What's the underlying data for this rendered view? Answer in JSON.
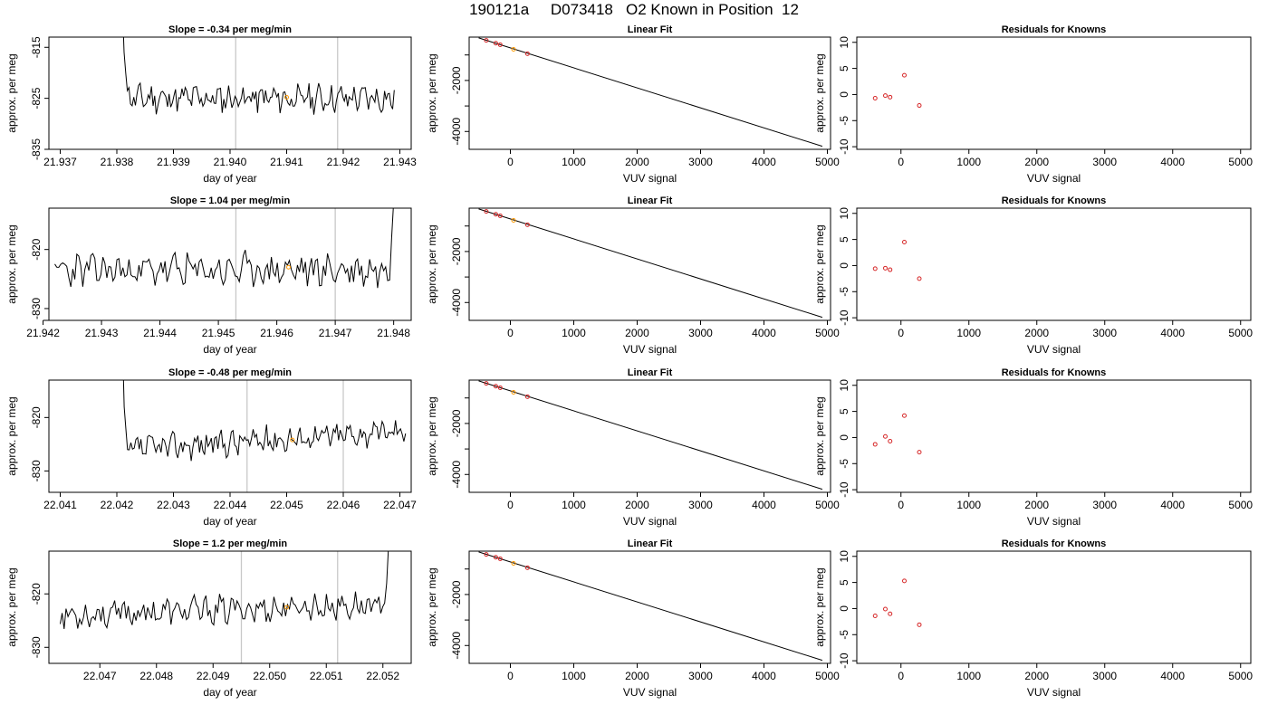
{
  "page": {
    "title": "190121a     D073418   O2 Known in Position  12"
  },
  "colors": {
    "series": "#000000",
    "marker_known": "#d62728",
    "marker_highlight": "#ff9900",
    "vline": "#c8c8c8"
  },
  "chart_data": [
    {
      "type": "line",
      "row": 0,
      "col": 0,
      "title": "Slope =  -0.34  per meg/min",
      "xlabel": "day of year",
      "ylabel": "approx. per meg",
      "xlim": [
        21.9368,
        21.9432
      ],
      "ylim": [
        -835,
        -813
      ],
      "xticks": [
        21.937,
        21.938,
        21.939,
        21.94,
        21.941,
        21.942,
        21.943
      ],
      "xtick_labels": [
        "21.937",
        "21.938",
        "21.939",
        "21.940",
        "21.941",
        "21.942",
        "21.943"
      ],
      "yticks": [
        -835,
        -825,
        -815
      ],
      "ytick_labels": [
        "-835",
        "-825",
        "-815"
      ],
      "vlines": [
        21.9401,
        21.9419
      ],
      "x_start": 21.9381,
      "x_end": 21.9429,
      "start_y": [
        -807,
        -816,
        -820,
        -823.5
      ],
      "noise_seed": 11,
      "base": -825,
      "drift": 0,
      "amplitude": 2.2,
      "highlight": {
        "x": 21.941,
        "y": -824.8
      }
    },
    {
      "type": "scatter",
      "row": 0,
      "col": 1,
      "title": "Linear Fit",
      "xlabel": "VUV signal",
      "ylabel": "approx. per meg",
      "xlim": [
        -650,
        5050
      ],
      "ylim": [
        -4700,
        -300
      ],
      "xticks": [
        0,
        1000,
        2000,
        3000,
        4000,
        5000
      ],
      "xtick_labels": [
        "0",
        "1000",
        "2000",
        "3000",
        "4000",
        "5000"
      ],
      "yticks": [
        -4000,
        -3000,
        -2000,
        -1000
      ],
      "ytick_labels": [
        "-4000",
        "",
        "-2000",
        ""
      ],
      "points": [
        {
          "x": -380,
          "y": -430
        },
        {
          "x": -230,
          "y": -540
        },
        {
          "x": -160,
          "y": -600
        },
        {
          "x": 50,
          "y": -780,
          "highlight": true
        },
        {
          "x": 270,
          "y": -950
        }
      ],
      "fit_line": [
        [
          -500,
          -330
        ],
        [
          4920,
          -4580
        ]
      ]
    },
    {
      "type": "scatter",
      "row": 0,
      "col": 2,
      "title": "Residuals for Knowns",
      "xlabel": "VUV signal",
      "ylabel": "approx. per meg",
      "xlim": [
        -650,
        5150
      ],
      "ylim": [
        -10.5,
        11
      ],
      "xticks": [
        0,
        1000,
        2000,
        3000,
        4000,
        5000
      ],
      "xtick_labels": [
        "0",
        "1000",
        "2000",
        "3000",
        "4000",
        "5000"
      ],
      "yticks": [
        -10,
        -5,
        0,
        5,
        10
      ],
      "ytick_labels": [
        "-10",
        "-5",
        "0",
        "5",
        "10"
      ],
      "points": [
        {
          "x": -380,
          "y": -0.7
        },
        {
          "x": -230,
          "y": -0.2
        },
        {
          "x": -160,
          "y": -0.5
        },
        {
          "x": 50,
          "y": 3.7
        },
        {
          "x": 270,
          "y": -2.1
        }
      ]
    },
    {
      "type": "line",
      "row": 1,
      "col": 0,
      "title": "Slope =  1.04  per meg/min",
      "xlabel": "day of year",
      "ylabel": "approx. per meg",
      "xlim": [
        21.9421,
        21.9483
      ],
      "ylim": [
        -832,
        -813
      ],
      "xticks": [
        21.942,
        21.943,
        21.944,
        21.945,
        21.946,
        21.947,
        21.948
      ],
      "xtick_labels": [
        "21.942",
        "21.943",
        "21.944",
        "21.945",
        "21.946",
        "21.947",
        "21.948"
      ],
      "yticks": [
        -830,
        -820
      ],
      "ytick_labels": [
        "-830",
        "-820"
      ],
      "vlines": [
        21.9453,
        21.947
      ],
      "x_start": 21.9422,
      "x_end": 21.948,
      "end_y": [
        -818,
        -812
      ],
      "noise_seed": 23,
      "base": -823.5,
      "drift": 0,
      "amplitude": 2.3,
      "highlight": {
        "x": 21.9462,
        "y": -823
      }
    },
    {
      "type": "scatter",
      "row": 1,
      "col": 1,
      "title": "Linear Fit",
      "xlabel": "VUV signal",
      "ylabel": "approx. per meg",
      "xlim": [
        -650,
        5050
      ],
      "ylim": [
        -4700,
        -300
      ],
      "xticks": [
        0,
        1000,
        2000,
        3000,
        4000,
        5000
      ],
      "xtick_labels": [
        "0",
        "1000",
        "2000",
        "3000",
        "4000",
        "5000"
      ],
      "yticks": [
        -4000,
        -3000,
        -2000,
        -1000
      ],
      "ytick_labels": [
        "-4000",
        "",
        "-2000",
        ""
      ],
      "points": [
        {
          "x": -380,
          "y": -430
        },
        {
          "x": -230,
          "y": -540
        },
        {
          "x": -160,
          "y": -600
        },
        {
          "x": 50,
          "y": -780,
          "highlight": true
        },
        {
          "x": 270,
          "y": -950
        }
      ],
      "fit_line": [
        [
          -500,
          -330
        ],
        [
          4920,
          -4580
        ]
      ]
    },
    {
      "type": "scatter",
      "row": 1,
      "col": 2,
      "title": "Residuals for Knowns",
      "xlabel": "VUV signal",
      "ylabel": "approx. per meg",
      "xlim": [
        -650,
        5150
      ],
      "ylim": [
        -10.5,
        11
      ],
      "xticks": [
        0,
        1000,
        2000,
        3000,
        4000,
        5000
      ],
      "xtick_labels": [
        "0",
        "1000",
        "2000",
        "3000",
        "4000",
        "5000"
      ],
      "yticks": [
        -10,
        -5,
        0,
        5,
        10
      ],
      "ytick_labels": [
        "-10",
        "-5",
        "0",
        "5",
        "10"
      ],
      "points": [
        {
          "x": -380,
          "y": -0.6
        },
        {
          "x": -230,
          "y": -0.5
        },
        {
          "x": -160,
          "y": -0.8
        },
        {
          "x": 50,
          "y": 4.5
        },
        {
          "x": 270,
          "y": -2.5
        }
      ]
    },
    {
      "type": "line",
      "row": 2,
      "col": 0,
      "title": "Slope =  -0.48  per meg/min",
      "xlabel": "day of year",
      "ylabel": "approx. per meg",
      "xlim": [
        22.0408,
        22.0472
      ],
      "ylim": [
        -834,
        -813
      ],
      "xticks": [
        22.041,
        22.042,
        22.043,
        22.044,
        22.045,
        22.046,
        22.047
      ],
      "xtick_labels": [
        "22.041",
        "22.042",
        "22.043",
        "22.044",
        "22.045",
        "22.046",
        "22.047"
      ],
      "yticks": [
        -830,
        -820
      ],
      "ytick_labels": [
        "-830",
        "-820"
      ],
      "vlines": [
        22.0443,
        22.046
      ],
      "x_start": 22.0421,
      "x_end": 22.0471,
      "start_y": [
        -806,
        -818,
        -822,
        -826
      ],
      "noise_seed": 37,
      "base": -826,
      "drift": 3.5,
      "amplitude": 2.0,
      "highlight": {
        "x": 22.0451,
        "y": -824.2
      }
    },
    {
      "type": "scatter",
      "row": 2,
      "col": 1,
      "title": "Linear Fit",
      "xlabel": "VUV signal",
      "ylabel": "approx. per meg",
      "xlim": [
        -650,
        5050
      ],
      "ylim": [
        -4700,
        -300
      ],
      "xticks": [
        0,
        1000,
        2000,
        3000,
        4000,
        5000
      ],
      "xtick_labels": [
        "0",
        "1000",
        "2000",
        "3000",
        "4000",
        "5000"
      ],
      "yticks": [
        -4000,
        -3000,
        -2000,
        -1000
      ],
      "ytick_labels": [
        "-4000",
        "",
        "-2000",
        ""
      ],
      "points": [
        {
          "x": -380,
          "y": -430
        },
        {
          "x": -230,
          "y": -540
        },
        {
          "x": -160,
          "y": -600
        },
        {
          "x": 50,
          "y": -780,
          "highlight": true
        },
        {
          "x": 270,
          "y": -950
        }
      ],
      "fit_line": [
        [
          -500,
          -330
        ],
        [
          4920,
          -4580
        ]
      ]
    },
    {
      "type": "scatter",
      "row": 2,
      "col": 2,
      "title": "Residuals for Knowns",
      "xlabel": "VUV signal",
      "ylabel": "approx. per meg",
      "xlim": [
        -650,
        5150
      ],
      "ylim": [
        -10.5,
        11
      ],
      "xticks": [
        0,
        1000,
        2000,
        3000,
        4000,
        5000
      ],
      "xtick_labels": [
        "0",
        "1000",
        "2000",
        "3000",
        "4000",
        "5000"
      ],
      "yticks": [
        -10,
        -5,
        0,
        5,
        10
      ],
      "ytick_labels": [
        "-10",
        "-5",
        "0",
        "5",
        "10"
      ],
      "points": [
        {
          "x": -380,
          "y": -1.3
        },
        {
          "x": -230,
          "y": 0.2
        },
        {
          "x": -160,
          "y": -0.7
        },
        {
          "x": 50,
          "y": 4.2
        },
        {
          "x": 270,
          "y": -2.8
        }
      ]
    },
    {
      "type": "line",
      "row": 3,
      "col": 0,
      "title": "Slope =  1.2  per meg/min",
      "xlabel": "day of year",
      "ylabel": "approx. per meg",
      "xlim": [
        22.0461,
        22.0525
      ],
      "ylim": [
        -833,
        -812
      ],
      "xticks": [
        22.047,
        22.048,
        22.049,
        22.05,
        22.051,
        22.052
      ],
      "xtick_labels": [
        "22.047",
        "22.048",
        "22.049",
        "22.050",
        "22.051",
        "22.052"
      ],
      "yticks": [
        -830,
        -820
      ],
      "ytick_labels": [
        "-830",
        "-820"
      ],
      "vlines": [
        22.0495,
        22.0512
      ],
      "x_start": 22.0463,
      "x_end": 22.0521,
      "end_y": [
        -818,
        -811
      ],
      "noise_seed": 53,
      "base": -824,
      "drift": 2.0,
      "amplitude": 2.1,
      "highlight": {
        "x": 22.0503,
        "y": -822.5
      }
    },
    {
      "type": "scatter",
      "row": 3,
      "col": 1,
      "title": "Linear Fit",
      "xlabel": "VUV signal",
      "ylabel": "approx. per meg",
      "xlim": [
        -650,
        5050
      ],
      "ylim": [
        -4700,
        -300
      ],
      "xticks": [
        0,
        1000,
        2000,
        3000,
        4000,
        5000
      ],
      "xtick_labels": [
        "0",
        "1000",
        "2000",
        "3000",
        "4000",
        "5000"
      ],
      "yticks": [
        -4000,
        -3000,
        -2000,
        -1000
      ],
      "ytick_labels": [
        "-4000",
        "",
        "-2000",
        ""
      ],
      "points": [
        {
          "x": -380,
          "y": -430
        },
        {
          "x": -230,
          "y": -540
        },
        {
          "x": -160,
          "y": -600
        },
        {
          "x": 50,
          "y": -780,
          "highlight": true
        },
        {
          "x": 270,
          "y": -950
        }
      ],
      "fit_line": [
        [
          -500,
          -330
        ],
        [
          4920,
          -4580
        ]
      ]
    },
    {
      "type": "scatter",
      "row": 3,
      "col": 2,
      "title": "Residuals for Knowns",
      "xlabel": "VUV signal",
      "ylabel": "approx. per meg",
      "xlim": [
        -650,
        5150
      ],
      "ylim": [
        -10.5,
        11
      ],
      "xticks": [
        0,
        1000,
        2000,
        3000,
        4000,
        5000
      ],
      "xtick_labels": [
        "0",
        "1000",
        "2000",
        "3000",
        "4000",
        "5000"
      ],
      "yticks": [
        -10,
        -5,
        0,
        5,
        10
      ],
      "ytick_labels": [
        "-10",
        "-5",
        "0",
        "5",
        "10"
      ],
      "points": [
        {
          "x": -380,
          "y": -1.4
        },
        {
          "x": -230,
          "y": -0.1
        },
        {
          "x": -160,
          "y": -1.0
        },
        {
          "x": 50,
          "y": 5.3
        },
        {
          "x": 270,
          "y": -3.1
        }
      ]
    }
  ]
}
